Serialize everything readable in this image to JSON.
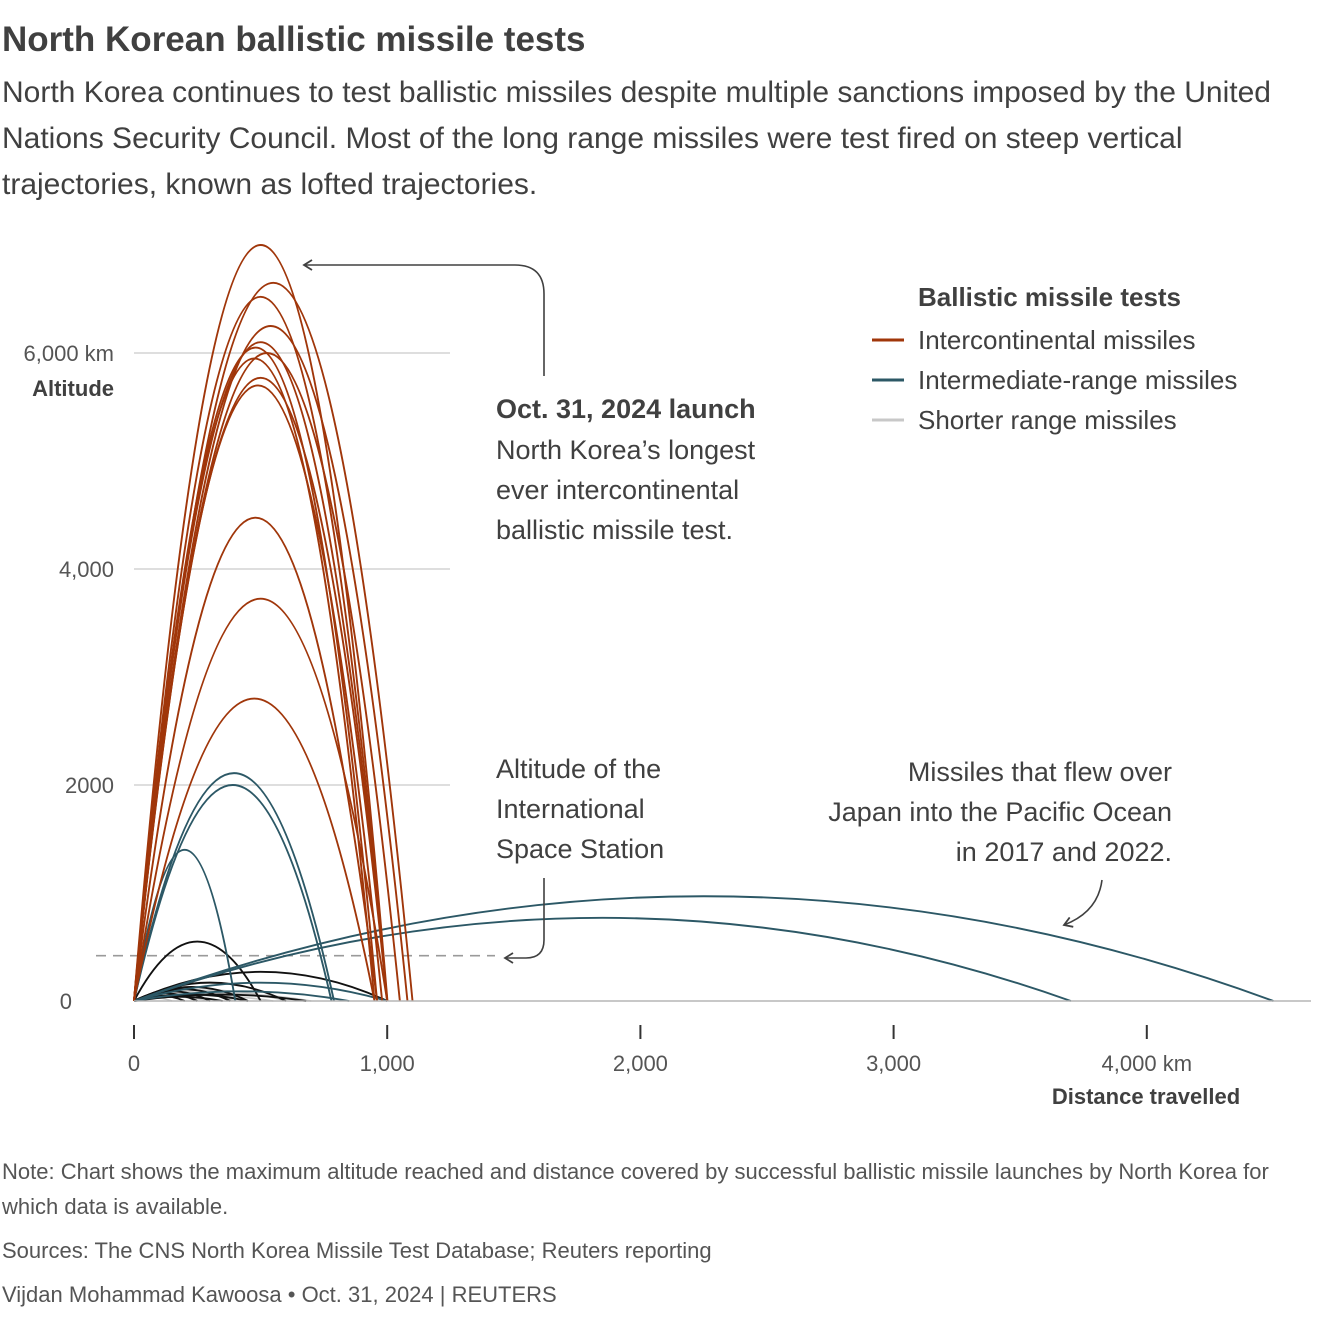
{
  "header": {
    "title": "North Korean ballistic missile tests",
    "subtitle": "North Korea continues to test ballistic missiles despite multiple sanctions imposed by the United Nations Security Council. Most of the long range missiles were test fired on steep vertical trajectories, known as lofted trajectories."
  },
  "colors": {
    "icbm": "#a0360a",
    "irbm": "#2c5866",
    "srbm": "#c8c8c8",
    "dark": "#111111",
    "grid": "#d4d4d4",
    "text": "#404040"
  },
  "chart_data": {
    "type": "line",
    "xlabel": "Distance travelled",
    "ylabel": "Altitude",
    "xlim": [
      0,
      4650
    ],
    "ylim": [
      0,
      7000
    ],
    "x_ticks": [
      {
        "value": 0,
        "label": "0"
      },
      {
        "value": 1000,
        "label": "1,000"
      },
      {
        "value": 2000,
        "label": "2,000"
      },
      {
        "value": 3000,
        "label": "3,000"
      },
      {
        "value": 4000,
        "label": "4,000 km"
      }
    ],
    "y_ticks": [
      {
        "value": 0,
        "label": "0"
      },
      {
        "value": 2000,
        "label": "2000"
      },
      {
        "value": 4000,
        "label": "4,000"
      },
      {
        "value": 6000,
        "label": "6,000 km"
      }
    ],
    "legend": {
      "title": "Ballistic missile tests",
      "position": "top-right",
      "items": [
        {
          "label": "Intercontinental missiles",
          "color": "#a0360a"
        },
        {
          "label": "Intermediate-range missiles",
          "color": "#2c5866"
        },
        {
          "label": "Shorter range missiles",
          "color": "#c8c8c8"
        }
      ]
    },
    "iss_altitude": 420,
    "series": [
      {
        "category": "icbm",
        "trajectories": [
          {
            "distance": 1001,
            "apogee": 7000
          },
          {
            "distance": 1100,
            "apogee": 6650
          },
          {
            "distance": 1000,
            "apogee": 6520
          },
          {
            "distance": 1080,
            "apogee": 6250
          },
          {
            "distance": 1000,
            "apogee": 6100
          },
          {
            "distance": 960,
            "apogee": 6050
          },
          {
            "distance": 1050,
            "apogee": 6000
          },
          {
            "distance": 950,
            "apogee": 5950
          },
          {
            "distance": 1000,
            "apogee": 5770
          },
          {
            "distance": 980,
            "apogee": 5700
          },
          {
            "distance": 960,
            "apogee": 4475
          },
          {
            "distance": 1000,
            "apogee": 3725
          },
          {
            "distance": 950,
            "apogee": 2800
          }
        ]
      },
      {
        "category": "irbm",
        "trajectories": [
          {
            "distance": 790,
            "apogee": 2110
          },
          {
            "distance": 780,
            "apogee": 2000
          },
          {
            "distance": 400,
            "apogee": 1400
          },
          {
            "distance": 4500,
            "apogee": 970
          },
          {
            "distance": 3700,
            "apogee": 770
          },
          {
            "distance": 1000,
            "apogee": 170
          },
          {
            "distance": 850,
            "apogee": 90
          }
        ]
      },
      {
        "category": "dark",
        "trajectories": [
          {
            "distance": 500,
            "apogee": 550
          },
          {
            "distance": 1000,
            "apogee": 270
          },
          {
            "distance": 600,
            "apogee": 170
          },
          {
            "distance": 450,
            "apogee": 130
          },
          {
            "distance": 380,
            "apogee": 110
          },
          {
            "distance": 300,
            "apogee": 90
          },
          {
            "distance": 250,
            "apogee": 70
          },
          {
            "distance": 450,
            "apogee": 60
          },
          {
            "distance": 200,
            "apogee": 50
          },
          {
            "distance": 350,
            "apogee": 40
          },
          {
            "distance": 680,
            "apogee": 60
          }
        ]
      },
      {
        "category": "srbm",
        "trajectories": [
          {
            "distance": 600,
            "apogee": 100
          },
          {
            "distance": 400,
            "apogee": 80
          },
          {
            "distance": 250,
            "apogee": 60
          },
          {
            "distance": 700,
            "apogee": 70
          },
          {
            "distance": 300,
            "apogee": 40
          },
          {
            "distance": 550,
            "apogee": 50
          },
          {
            "distance": 150,
            "apogee": 30
          }
        ]
      }
    ],
    "annotations": {
      "oct31": {
        "heading": "Oct. 31, 2024 launch",
        "lines": [
          "North Korea’s longest",
          "ever intercontinental",
          "ballistic missile test."
        ]
      },
      "iss": {
        "lines": [
          "Altitude of the",
          "International",
          "Space Station"
        ]
      },
      "japan": {
        "lines": [
          "Missiles that flew over",
          "Japan into the Pacific Ocean",
          "in 2017 and 2022."
        ]
      }
    }
  },
  "footer": {
    "note": "Note: Chart shows the maximum altitude reached and distance covered by successful ballistic missile launches by North Korea for which data is available.",
    "sources": "Sources: The CNS North Korea Missile Test Database; Reuters reporting",
    "byline": "Vijdan Mohammad Kawoosa • Oct. 31, 2024 | REUTERS"
  }
}
